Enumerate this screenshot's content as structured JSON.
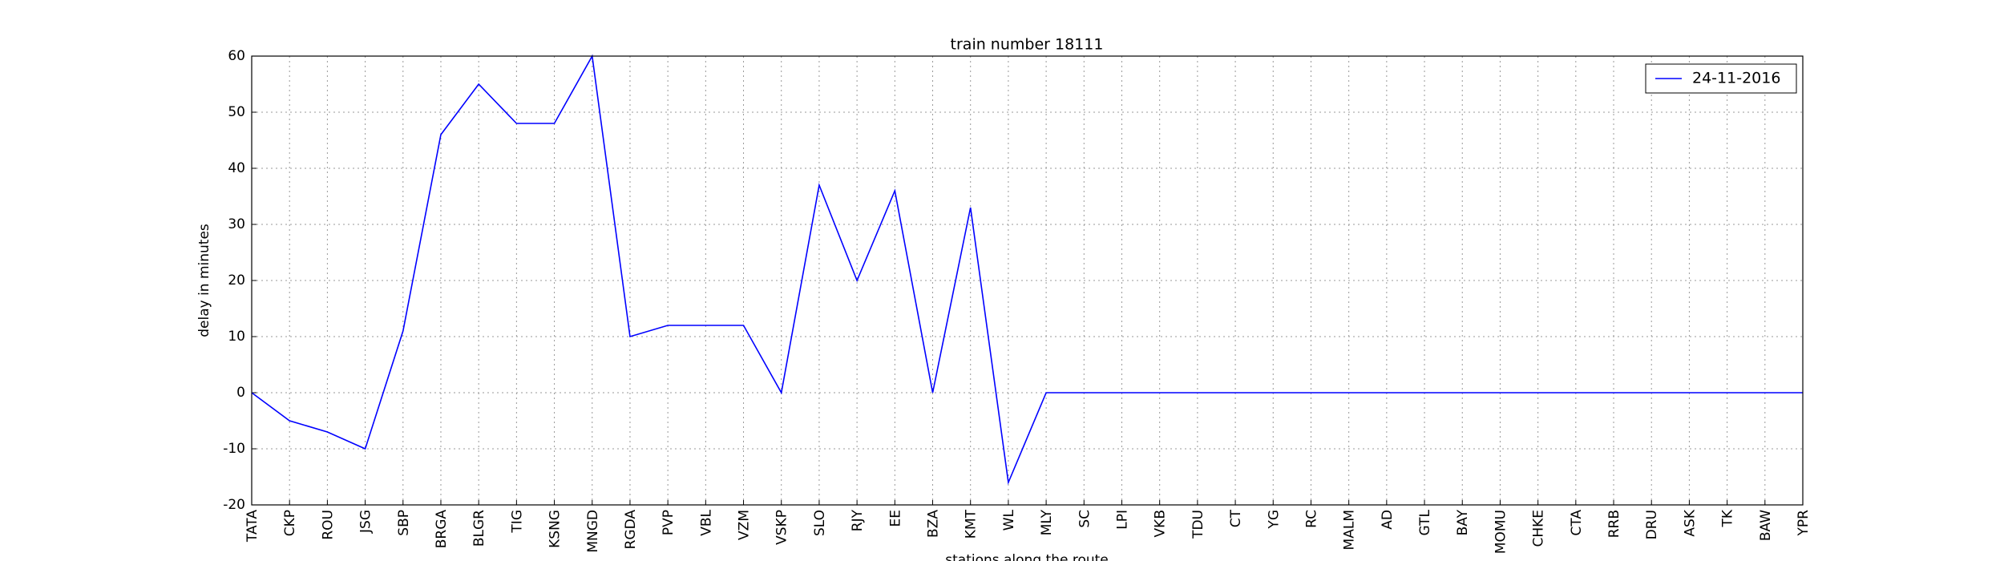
{
  "chart_data": {
    "type": "line",
    "title": "train number 18111",
    "x_label": "stations along the route",
    "y_label": "delay in minutes",
    "categories": [
      "TATA",
      "CKP",
      "ROU",
      "JSG",
      "SBP",
      "BRGA",
      "BLGR",
      "TIG",
      "KSNG",
      "MNGD",
      "RGDA",
      "PVP",
      "VBL",
      "VZM",
      "VSKP",
      "SLO",
      "RJY",
      "EE",
      "BZA",
      "KMT",
      "WL",
      "MLY",
      "SC",
      "LPI",
      "VKB",
      "TDU",
      "CT",
      "YG",
      "RC",
      "MALM",
      "AD",
      "GTL",
      "BAY",
      "MOMU",
      "CHKE",
      "CTA",
      "RRB",
      "DRU",
      "ASK",
      "TK",
      "BAW",
      "YPR"
    ],
    "series": [
      {
        "name": "24-11-2016",
        "color": "#0000ff",
        "values": [
          0,
          -5,
          -7,
          -10,
          11,
          46,
          55,
          48,
          48,
          60,
          10,
          12,
          12,
          12,
          0,
          37,
          20,
          36,
          0,
          33,
          -16,
          0,
          0,
          0,
          0,
          0,
          0,
          0,
          0,
          0,
          0,
          0,
          0,
          0,
          0,
          0,
          0,
          0,
          0,
          0,
          0,
          0
        ]
      }
    ],
    "ylim": [
      -20,
      60
    ],
    "yticks": [
      -20,
      -10,
      0,
      10,
      20,
      30,
      40,
      50,
      60
    ],
    "grid": true,
    "legend": "upper right"
  }
}
